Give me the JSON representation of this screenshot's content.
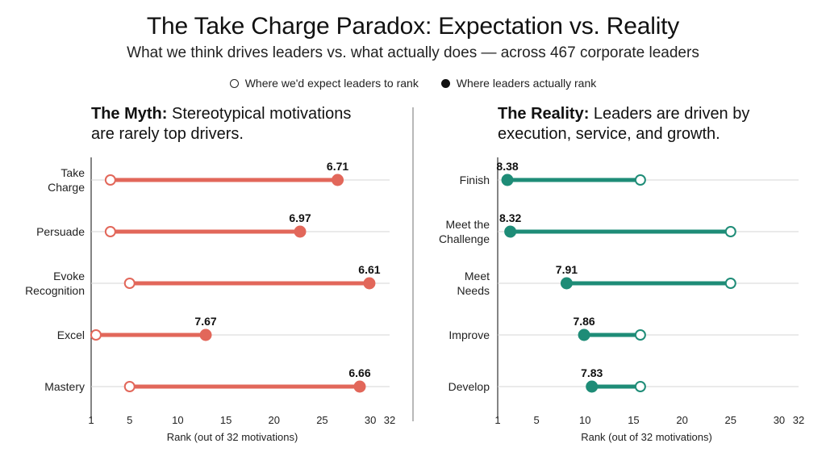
{
  "title": "The Take Charge Paradox: Expectation vs. Reality",
  "subtitle": "What we think drives leaders vs. what actually does — across 467 corporate leaders",
  "legend": {
    "expected": "Where we'd expect leaders to rank",
    "actual": "Where leaders actually rank"
  },
  "colors": {
    "myth": "#e2675a",
    "reality": "#1e8c77"
  },
  "chart_data": [
    {
      "type": "dumbbell",
      "id": "myth",
      "heading_bold": "The Myth:",
      "heading_line1": " Stereotypical motivations",
      "heading_line2": "are rarely top drivers.",
      "xlabel": "Rank (out of 32 motivations)",
      "xlim": [
        1,
        32
      ],
      "xticks": [
        1,
        5,
        10,
        15,
        20,
        25,
        30,
        32
      ],
      "rows": [
        {
          "label": [
            "Take",
            "Charge"
          ],
          "expected": 3,
          "actual": 26.6,
          "score": "6.71"
        },
        {
          "label": [
            "Persuade"
          ],
          "expected": 3,
          "actual": 22.7,
          "score": "6.97"
        },
        {
          "label": [
            "Evoke",
            "Recognition"
          ],
          "expected": 5,
          "actual": 29.9,
          "score": "6.61"
        },
        {
          "label": [
            "Excel"
          ],
          "expected": 1.5,
          "actual": 12.9,
          "score": "7.67"
        },
        {
          "label": [
            "Mastery"
          ],
          "expected": 5,
          "actual": 28.9,
          "score": "6.66"
        }
      ]
    },
    {
      "type": "dumbbell",
      "id": "reality",
      "heading_bold": "The Reality:",
      "heading_line1": " Leaders are driven by",
      "heading_line2": "execution, service, and growth.",
      "xlabel": "Rank (out of 32 motivations)",
      "xlim": [
        1,
        32
      ],
      "xticks": [
        1,
        5,
        10,
        15,
        20,
        25,
        30,
        32
      ],
      "rows": [
        {
          "label": [
            "Finish"
          ],
          "expected": 15.7,
          "actual": 2,
          "score": "8.38"
        },
        {
          "label": [
            "Meet the",
            "Challenge"
          ],
          "expected": 25,
          "actual": 2.3,
          "score": "8.32"
        },
        {
          "label": [
            "Meet",
            "Needs"
          ],
          "expected": 25,
          "actual": 8.1,
          "score": "7.91"
        },
        {
          "label": [
            "Improve"
          ],
          "expected": 15.7,
          "actual": 9.9,
          "score": "7.86"
        },
        {
          "label": [
            "Develop"
          ],
          "expected": 15.7,
          "actual": 10.7,
          "score": "7.83"
        }
      ]
    }
  ]
}
